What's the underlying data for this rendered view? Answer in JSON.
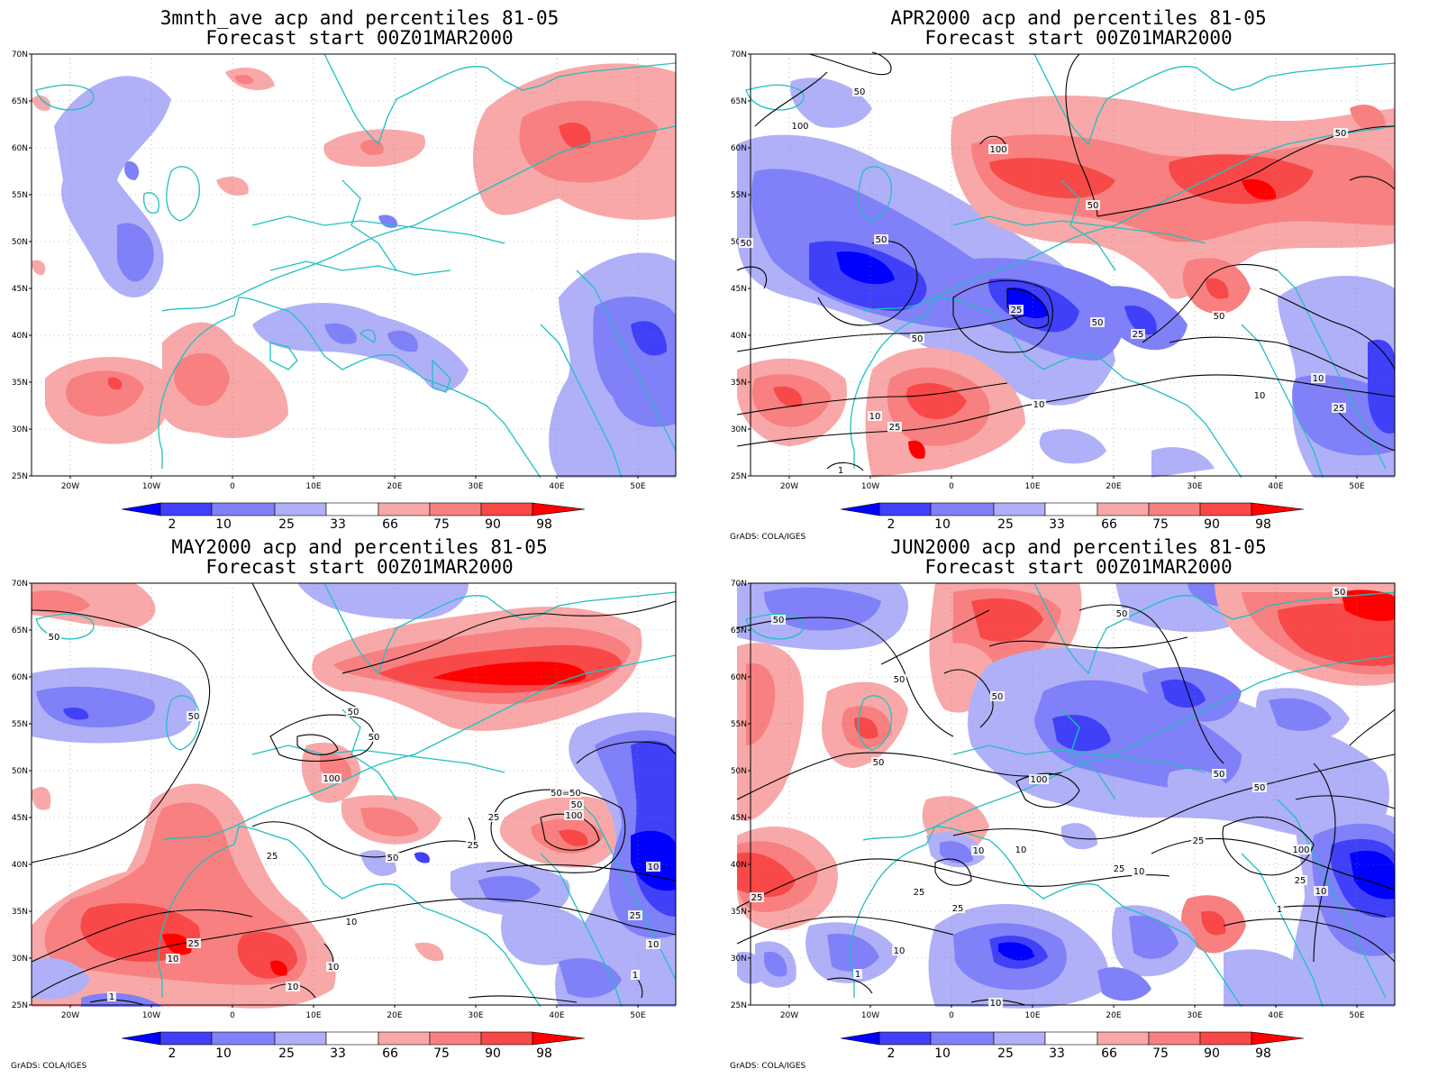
{
  "panels": [
    {
      "title_line1": "3mnth_ave acp and percentiles 81-05",
      "title_line2": "Forecast start 00Z01MAR2000",
      "credit": ""
    },
    {
      "title_line1": "APR2000 acp and percentiles 81-05",
      "title_line2": "Forecast start 00Z01MAR2000",
      "credit": "GrADS: COLA/IGES"
    },
    {
      "title_line1": "MAY2000 acp and percentiles 81-05",
      "title_line2": "Forecast start 00Z01MAR2000",
      "credit": "GrADS: COLA/IGES"
    },
    {
      "title_line1": "JUN2000 acp and percentiles 81-05",
      "title_line2": "Forecast start 00Z01MAR2000",
      "credit": "GrADS: COLA/IGES"
    }
  ],
  "lat_labels": [
    "70N",
    "65N",
    "60N",
    "55N",
    "50N",
    "45N",
    "40N",
    "35N",
    "30N",
    "25N"
  ],
  "lon_labels": [
    "20W",
    "10W",
    "0",
    "10E",
    "20E",
    "30E",
    "40E",
    "50E"
  ],
  "colorbar": {
    "labels": [
      "2",
      "10",
      "25",
      "33",
      "66",
      "75",
      "90",
      "98"
    ],
    "colors": [
      "#0000ff",
      "#4040f8",
      "#8080f8",
      "#b0b0f8",
      "#ffffff",
      "#f8a8a8",
      "#f88080",
      "#f84848",
      "#ff0000"
    ]
  },
  "colors": {
    "coast": "#20c0c0",
    "contour": "#000000",
    "grid": "#888888"
  },
  "contour_labels": {
    "apr": [
      "50",
      "100",
      "100",
      "50",
      "50",
      "50",
      "25",
      "50",
      "50",
      "25",
      "50",
      "10",
      "10",
      "25",
      "10",
      "10",
      "25",
      "50",
      "1"
    ],
    "may": [
      "50",
      "50",
      "50",
      "50",
      "100",
      "50",
      "25",
      "25",
      "50=50",
      "100",
      "10",
      "50",
      "25",
      "10",
      "10",
      "25",
      "10",
      "10",
      "25",
      "1",
      "10",
      "1"
    ],
    "jun": [
      "50",
      "50",
      "50",
      "50",
      "50",
      "100",
      "50",
      "50",
      "10",
      "25",
      "25",
      "10",
      "25",
      "10",
      "25",
      "100",
      "25",
      "10",
      "1",
      "25",
      "10",
      "1",
      "10",
      "50"
    ]
  }
}
